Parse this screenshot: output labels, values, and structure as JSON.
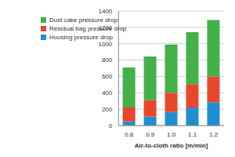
{
  "chart_data": {
    "type": "bar",
    "x_label": "Air-to-cloth ratio [m/min]",
    "categories": [
      "0.8",
      "0.9",
      "1.0",
      "1.1",
      "1.2"
    ],
    "series": [
      {
        "name": "Dust cake pressure drop",
        "color": "#44b04a",
        "values": [
          490,
          535,
          590,
          635,
          690
        ]
      },
      {
        "name": "Residual bag pressure drop",
        "color": "#e8472b",
        "values": [
          170,
          200,
          235,
          285,
          315
        ]
      },
      {
        "name": "Housing pressure drop",
        "color": "#1f8fd2",
        "values": [
          50,
          110,
          165,
          220,
          285
        ]
      }
    ],
    "ylim": [
      0,
      1400
    ],
    "yticks": [
      0,
      200,
      400,
      600,
      800,
      1000,
      1200,
      1400
    ],
    "stacked": true,
    "grid": true,
    "legend": "upper left"
  }
}
